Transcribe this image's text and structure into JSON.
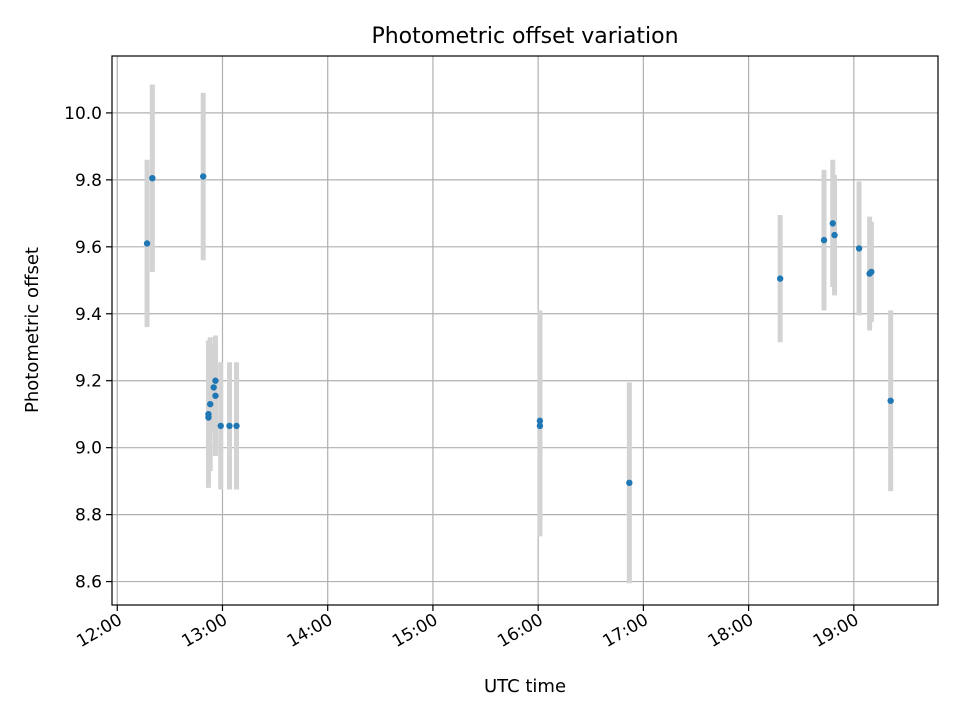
{
  "chart_data": {
    "type": "scatter",
    "title": "Photometric offset variation",
    "xlabel": "UTC time",
    "ylabel": "Photometric offset",
    "x_axis": "time",
    "xlim": [
      "11:57",
      "19:48"
    ],
    "ylim": [
      8.53,
      10.17
    ],
    "x_ticks": [
      "12:00",
      "13:00",
      "14:00",
      "15:00",
      "16:00",
      "17:00",
      "18:00",
      "19:00"
    ],
    "y_ticks": [
      8.6,
      8.8,
      9.0,
      9.2,
      9.4,
      9.6,
      9.8,
      10.0
    ],
    "y_tick_labels": [
      "8.6",
      "8.8",
      "9.0",
      "9.2",
      "9.4",
      "9.6",
      "9.8",
      "10.0"
    ],
    "grid": true,
    "colors": {
      "point": "#1f77b4",
      "errorbar": "#d3d3d3",
      "grid": "#b0b0b0"
    },
    "points": [
      {
        "x": "12:17",
        "y": 9.61,
        "err": 0.25
      },
      {
        "x": "12:20",
        "y": 9.805,
        "err": 0.28
      },
      {
        "x": "12:49",
        "y": 9.81,
        "err": 0.25
      },
      {
        "x": "12:52",
        "y": 9.09,
        "err": 0.2
      },
      {
        "x": "12:52",
        "y": 9.1,
        "err": 0.22
      },
      {
        "x": "12:53",
        "y": 9.13,
        "err": 0.2
      },
      {
        "x": "12:55",
        "y": 9.18,
        "err": 0.13
      },
      {
        "x": "12:56",
        "y": 9.2,
        "err": 0.13
      },
      {
        "x": "12:56",
        "y": 9.155,
        "err": 0.18
      },
      {
        "x": "12:59",
        "y": 9.065,
        "err": 0.19
      },
      {
        "x": "13:04",
        "y": 9.065,
        "err": 0.19
      },
      {
        "x": "13:08",
        "y": 9.065,
        "err": 0.19
      },
      {
        "x": "16:01",
        "y": 9.065,
        "err": 0.33
      },
      {
        "x": "16:01",
        "y": 9.08,
        "err": 0.33
      },
      {
        "x": "16:52",
        "y": 8.895,
        "err": 0.3
      },
      {
        "x": "18:18",
        "y": 9.505,
        "err": 0.19
      },
      {
        "x": "18:43",
        "y": 9.62,
        "err": 0.21
      },
      {
        "x": "18:48",
        "y": 9.67,
        "err": 0.19
      },
      {
        "x": "18:49",
        "y": 9.635,
        "err": 0.18
      },
      {
        "x": "19:03",
        "y": 9.595,
        "err": 0.2
      },
      {
        "x": "19:09",
        "y": 9.52,
        "err": 0.17
      },
      {
        "x": "19:10",
        "y": 9.525,
        "err": 0.15
      },
      {
        "x": "19:21",
        "y": 9.14,
        "err": 0.27
      }
    ]
  }
}
